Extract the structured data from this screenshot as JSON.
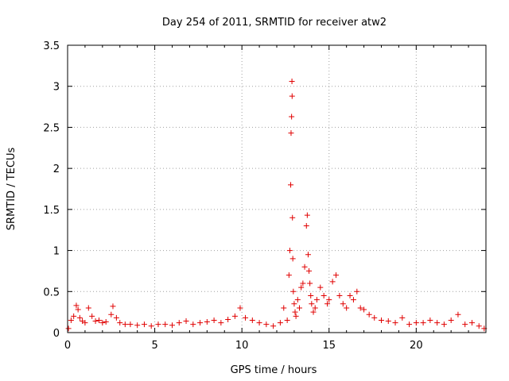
{
  "chart_data": {
    "type": "scatter",
    "title": "Day 254 of 2011, SRMTID for receiver atw2",
    "xlabel": "GPS time / hours",
    "ylabel": "SRMTID / TECUs",
    "xlim": [
      0,
      24
    ],
    "ylim": [
      0,
      3.5
    ],
    "xticks": [
      "0",
      "5",
      "10",
      "15",
      "20"
    ],
    "xtick_values": [
      0,
      5,
      10,
      15,
      20
    ],
    "yticks": [
      "0",
      "0.5",
      "1",
      "1.5",
      "2",
      "2.5",
      "3",
      "3.5"
    ],
    "ytick_values": [
      0,
      0.5,
      1,
      1.5,
      2,
      2.5,
      3,
      3.5
    ],
    "grid": true,
    "marker": "+",
    "series_color": "#e00000",
    "series": [
      {
        "name": "SRMTID",
        "x": [
          0.05,
          0.2,
          0.35,
          0.5,
          0.6,
          0.7,
          0.85,
          1.0,
          1.2,
          1.4,
          1.6,
          1.8,
          2.0,
          2.2,
          2.5,
          2.6,
          2.8,
          3.0,
          3.3,
          3.6,
          4.0,
          4.4,
          4.8,
          5.2,
          5.6,
          6.0,
          6.4,
          6.8,
          7.2,
          7.6,
          8.0,
          8.4,
          8.8,
          9.2,
          9.6,
          9.9,
          10.2,
          10.6,
          11.0,
          11.4,
          11.8,
          12.2,
          12.4,
          12.6,
          12.7,
          12.75,
          12.8,
          12.82,
          12.85,
          12.87,
          12.88,
          12.9,
          12.92,
          12.95,
          13.0,
          13.05,
          13.1,
          13.2,
          13.3,
          13.4,
          13.5,
          13.6,
          13.7,
          13.75,
          13.8,
          13.85,
          13.9,
          13.95,
          14.0,
          14.1,
          14.2,
          14.3,
          14.5,
          14.7,
          14.9,
          15.0,
          15.2,
          15.4,
          15.6,
          15.8,
          16.0,
          16.2,
          16.4,
          16.6,
          16.8,
          17.0,
          17.3,
          17.6,
          18.0,
          18.4,
          18.8,
          19.2,
          19.6,
          20.0,
          20.4,
          20.8,
          21.2,
          21.6,
          22.0,
          22.4,
          22.8,
          23.2,
          23.6,
          23.9
        ],
        "values": [
          0.05,
          0.15,
          0.2,
          0.33,
          0.28,
          0.18,
          0.14,
          0.12,
          0.3,
          0.2,
          0.14,
          0.15,
          0.12,
          0.13,
          0.22,
          0.32,
          0.18,
          0.12,
          0.1,
          0.1,
          0.09,
          0.1,
          0.08,
          0.1,
          0.1,
          0.09,
          0.12,
          0.14,
          0.1,
          0.12,
          0.13,
          0.15,
          0.12,
          0.16,
          0.2,
          0.3,
          0.18,
          0.15,
          0.12,
          0.1,
          0.08,
          0.12,
          0.3,
          0.15,
          0.7,
          1.0,
          1.8,
          2.43,
          2.63,
          3.06,
          2.88,
          1.4,
          0.9,
          0.5,
          0.35,
          0.25,
          0.2,
          0.4,
          0.3,
          0.55,
          0.6,
          0.8,
          1.3,
          1.43,
          0.95,
          0.75,
          0.6,
          0.45,
          0.35,
          0.25,
          0.3,
          0.4,
          0.55,
          0.45,
          0.35,
          0.4,
          0.62,
          0.7,
          0.45,
          0.35,
          0.3,
          0.45,
          0.4,
          0.5,
          0.3,
          0.28,
          0.22,
          0.18,
          0.15,
          0.14,
          0.12,
          0.18,
          0.1,
          0.12,
          0.12,
          0.15,
          0.12,
          0.1,
          0.15,
          0.22,
          0.1,
          0.12,
          0.08,
          0.05
        ]
      }
    ]
  }
}
